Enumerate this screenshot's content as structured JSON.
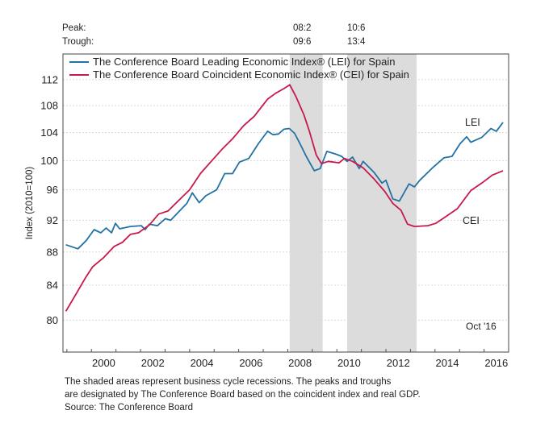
{
  "chart_data": {
    "type": "line",
    "ylabel": "Index (2010=100)",
    "yscale": "log",
    "ylim": [
      76.5,
      116.1
    ],
    "yticks": [
      "80",
      "84",
      "88",
      "92",
      "96",
      "100",
      "104",
      "108",
      "112"
    ],
    "xlim": [
      1998.84,
      2017.0
    ],
    "xticks": [
      "2000",
      "2002",
      "2004",
      "2006",
      "2008",
      "2010",
      "2012",
      "2014",
      "2016"
    ],
    "grid": true,
    "legend": "top-left",
    "peak_label": "Peak:",
    "trough_label": "Trough:",
    "recessions": [
      {
        "peak": "08:2",
        "trough": "09:6",
        "start": 2008.08,
        "end": 2009.42
      },
      {
        "peak": "10:6",
        "trough": "13:4",
        "start": 2010.42,
        "end": 2013.25
      }
    ],
    "series": [
      {
        "name": "The Conference Board Leading Economic Index® (LEI) for Spain",
        "short": "LEI",
        "color": "#2472a4",
        "x": [
          1998.96,
          1999.45,
          1999.78,
          2000.11,
          2000.38,
          2000.6,
          2000.82,
          2000.98,
          2001.15,
          2001.59,
          2002.03,
          2002.19,
          2002.36,
          2002.69,
          2003.01,
          2003.23,
          2003.56,
          2003.89,
          2004.11,
          2004.39,
          2004.66,
          2005.1,
          2005.43,
          2005.75,
          2006.03,
          2006.41,
          2006.8,
          2007.18,
          2007.4,
          2007.62,
          2007.84,
          2008.06,
          2008.28,
          2008.5,
          2008.77,
          2009.08,
          2009.32,
          2009.59,
          2009.98,
          2010.2,
          2010.42,
          2010.64,
          2010.91,
          2011.07,
          2011.51,
          2011.84,
          2012.0,
          2012.28,
          2012.55,
          2012.94,
          2013.16,
          2013.38,
          2013.93,
          2014.36,
          2014.69,
          2015.02,
          2015.29,
          2015.46,
          2015.9,
          2016.28,
          2016.5,
          2016.77
        ],
        "values": [
          88.9,
          88.4,
          89.4,
          90.8,
          90.4,
          91.0,
          90.4,
          91.6,
          90.9,
          91.2,
          91.3,
          90.8,
          91.5,
          91.3,
          92.2,
          92.0,
          93.1,
          94.2,
          95.6,
          94.3,
          95.2,
          96.0,
          98.2,
          98.2,
          99.8,
          100.3,
          102.4,
          104.2,
          103.7,
          103.8,
          104.5,
          104.6,
          103.9,
          102.4,
          100.5,
          98.6,
          98.9,
          101.3,
          100.9,
          100.6,
          99.9,
          100.5,
          98.9,
          99.9,
          98.4,
          96.9,
          97.3,
          94.8,
          94.5,
          96.8,
          96.4,
          97.3,
          99.1,
          100.4,
          100.6,
          102.4,
          103.4,
          102.6,
          103.3,
          104.6,
          104.2,
          105.5
        ]
      },
      {
        "name": "The Conference Board Coincident Economic Index® (CEI) for Spain",
        "short": "CEI",
        "color": "#c8184a",
        "x": [
          1998.96,
          1999.4,
          1999.78,
          2000.05,
          2000.49,
          2000.93,
          2001.26,
          2001.59,
          2001.92,
          2002.36,
          2002.74,
          2003.12,
          2003.56,
          2004.0,
          2004.44,
          2004.88,
          2005.32,
          2005.75,
          2006.2,
          2006.63,
          2007.18,
          2007.51,
          2007.84,
          2008.08,
          2008.33,
          2008.66,
          2008.88,
          2009.16,
          2009.37,
          2009.65,
          2010.09,
          2010.31,
          2010.64,
          2011.07,
          2011.51,
          2011.95,
          2012.28,
          2012.61,
          2012.88,
          2013.16,
          2013.71,
          2014.03,
          2014.36,
          2014.91,
          2015.46,
          2015.9,
          2016.34,
          2016.77
        ],
        "values": [
          81.0,
          83.1,
          85.0,
          86.2,
          87.3,
          88.7,
          89.2,
          90.2,
          90.4,
          91.4,
          92.8,
          93.2,
          94.6,
          96.0,
          98.2,
          99.9,
          101.6,
          103.1,
          105.0,
          106.4,
          109.0,
          109.9,
          110.6,
          111.2,
          109.4,
          106.6,
          104.2,
          100.8,
          99.6,
          99.9,
          99.7,
          100.3,
          99.9,
          99.0,
          97.5,
          95.8,
          94.2,
          93.3,
          91.5,
          91.2,
          91.3,
          91.6,
          92.3,
          93.5,
          95.9,
          96.9,
          98.0,
          98.6
        ]
      }
    ],
    "annotations": {
      "last_date": "Oct '16"
    },
    "footnotes": [
      "The shaded areas represent business cycle recessions. The peaks and troughs",
      "are designated by The Conference Board based on the coincident index and real GDP.",
      "Source: The Conference Board"
    ]
  }
}
